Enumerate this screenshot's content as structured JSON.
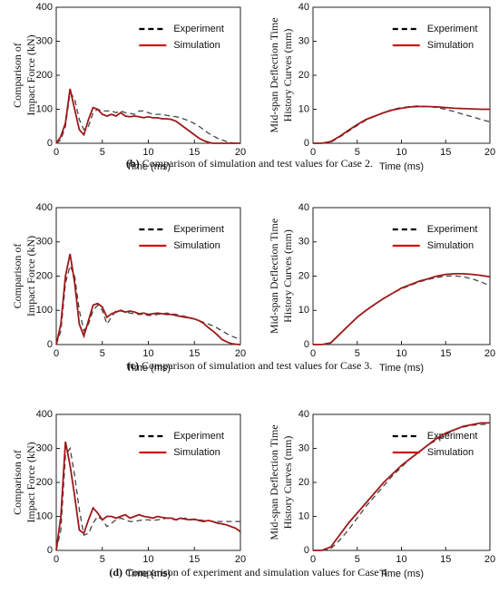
{
  "chart_data": [
    {
      "type": "line",
      "ylabel": [
        "Comparison of",
        "Impact Force (kN)"
      ],
      "xlabel": "Time (ms)",
      "xlim": [
        0,
        20
      ],
      "xticks": [
        0,
        5,
        10,
        15,
        20
      ],
      "ylim": [
        0,
        400
      ],
      "yticks": [
        0,
        100,
        200,
        300,
        400
      ],
      "x": [
        0,
        0.5,
        1,
        1.5,
        2,
        2.5,
        3,
        3.5,
        4,
        4.5,
        5,
        5.5,
        6,
        6.5,
        7,
        7.5,
        8,
        8.5,
        9,
        9.5,
        10,
        10.5,
        11,
        11.5,
        12,
        12.5,
        13,
        13.5,
        14,
        14.5,
        15,
        15.5,
        16,
        16.5,
        17,
        17.5,
        18,
        18.5,
        19,
        19.5,
        20
      ],
      "series": [
        {
          "name": "Experiment",
          "color": "#444444",
          "style": "dashed",
          "values": [
            0,
            10,
            50,
            150,
            130,
            70,
            40,
            50,
            90,
            100,
            95,
            95,
            95,
            90,
            95,
            90,
            88,
            85,
            95,
            95,
            90,
            85,
            85,
            85,
            82,
            80,
            78,
            75,
            70,
            65,
            58,
            50,
            40,
            30,
            22,
            15,
            10,
            5,
            2,
            0,
            0
          ]
        },
        {
          "name": "Simulation",
          "color": "#a01818",
          "style": "solid",
          "values": [
            0,
            20,
            60,
            160,
            100,
            40,
            25,
            70,
            105,
            100,
            85,
            80,
            85,
            80,
            90,
            80,
            78,
            80,
            78,
            75,
            78,
            75,
            75,
            72,
            72,
            70,
            65,
            55,
            45,
            35,
            25,
            15,
            8,
            3,
            0,
            0,
            0,
            0,
            0,
            0,
            0
          ]
        }
      ]
    },
    {
      "type": "line",
      "ylabel": [
        "Mid-span Deflection Time",
        "History Curves (mm)"
      ],
      "xlabel": "Time (ms)",
      "xlim": [
        0,
        20
      ],
      "xticks": [
        0,
        5,
        10,
        15,
        20
      ],
      "ylim": [
        0,
        40
      ],
      "yticks": [
        0,
        10,
        20,
        30,
        40
      ],
      "x": [
        0,
        1,
        2,
        3,
        4,
        5,
        6,
        7,
        8,
        9,
        10,
        11,
        12,
        13,
        14,
        15,
        16,
        17,
        18,
        19,
        20
      ],
      "series": [
        {
          "name": "Experiment",
          "color": "#444444",
          "style": "dashed",
          "values": [
            0,
            0,
            0.3,
            1.8,
            3.5,
            5.2,
            6.8,
            8,
            9,
            10,
            10.5,
            10.8,
            11,
            10.8,
            10.5,
            10,
            9.3,
            8.5,
            7.8,
            7,
            6.3
          ]
        },
        {
          "name": "Simulation",
          "color": "#a01818",
          "style": "solid",
          "values": [
            0,
            0,
            0.5,
            2,
            3.8,
            5.5,
            7,
            8,
            9,
            9.8,
            10.3,
            10.7,
            10.8,
            10.8,
            10.7,
            10.5,
            10.3,
            10.2,
            10.1,
            10,
            10
          ]
        }
      ]
    },
    {
      "type": "line",
      "ylabel": [
        "Comparison of",
        "Impact Force (kN)"
      ],
      "xlabel": "Time (ms)",
      "xlim": [
        0,
        20
      ],
      "xticks": [
        0,
        5,
        10,
        15,
        20
      ],
      "ylim": [
        0,
        400
      ],
      "yticks": [
        0,
        100,
        200,
        300,
        400
      ],
      "x": [
        0,
        0.5,
        1,
        1.5,
        2,
        2.5,
        3,
        3.5,
        4,
        4.5,
        5,
        5.5,
        6,
        6.5,
        7,
        7.5,
        8,
        8.5,
        9,
        9.5,
        10,
        10.5,
        11,
        11.5,
        12,
        12.5,
        13,
        13.5,
        14,
        14.5,
        15,
        15.5,
        16,
        16.5,
        17,
        17.5,
        18,
        18.5,
        19,
        19.5,
        20
      ],
      "series": [
        {
          "name": "Experiment",
          "color": "#444444",
          "style": "dashed",
          "values": [
            0,
            40,
            180,
            230,
            200,
            100,
            40,
            60,
            100,
            115,
            100,
            60,
            80,
            100,
            98,
            95,
            92,
            90,
            88,
            88,
            85,
            85,
            88,
            90,
            92,
            90,
            88,
            85,
            82,
            78,
            75,
            70,
            65,
            60,
            55,
            48,
            40,
            32,
            25,
            20,
            15
          ]
        },
        {
          "name": "Simulation",
          "color": "#a01818",
          "style": "solid",
          "values": [
            0,
            60,
            200,
            265,
            180,
            60,
            25,
            70,
            115,
            120,
            110,
            80,
            90,
            95,
            100,
            95,
            98,
            95,
            90,
            92,
            88,
            90,
            92,
            90,
            88,
            88,
            85,
            82,
            80,
            78,
            75,
            70,
            62,
            50,
            40,
            28,
            15,
            8,
            3,
            1,
            0
          ]
        }
      ]
    },
    {
      "type": "line",
      "ylabel": [
        "Mid-span Deflection Time",
        "History Curves (mm)"
      ],
      "xlabel": "Time (ms)",
      "xlim": [
        0,
        20
      ],
      "xticks": [
        0,
        5,
        10,
        15,
        20
      ],
      "ylim": [
        0,
        40
      ],
      "yticks": [
        0,
        10,
        20,
        30,
        40
      ],
      "x": [
        0,
        1,
        2,
        3,
        4,
        5,
        6,
        7,
        8,
        9,
        10,
        11,
        12,
        13,
        14,
        15,
        16,
        17,
        18,
        19,
        20
      ],
      "series": [
        {
          "name": "Experiment",
          "color": "#444444",
          "style": "dashed",
          "values": [
            0,
            0,
            0.5,
            3,
            5.5,
            8,
            10,
            11.8,
            13.5,
            15,
            16.3,
            17.3,
            18.3,
            19,
            19.6,
            20,
            20.1,
            19.8,
            19.2,
            18.3,
            17.2
          ]
        },
        {
          "name": "Simulation",
          "color": "#a01818",
          "style": "solid",
          "values": [
            0,
            0,
            0.5,
            3,
            5.5,
            8,
            10,
            11.8,
            13.5,
            15,
            16.5,
            17.5,
            18.5,
            19.2,
            20,
            20.5,
            20.7,
            20.7,
            20.5,
            20.2,
            19.8
          ]
        }
      ]
    },
    {
      "type": "line",
      "ylabel": [
        "Comparison of",
        "Impact Force (kN)"
      ],
      "xlabel": "Time (ms)",
      "xlim": [
        0,
        20
      ],
      "xticks": [
        0,
        5,
        10,
        15,
        20
      ],
      "ylim": [
        0,
        400
      ],
      "yticks": [
        0,
        100,
        200,
        300,
        400
      ],
      "x": [
        0,
        0.5,
        1,
        1.5,
        2,
        2.5,
        3,
        3.5,
        4,
        4.5,
        5,
        5.5,
        6,
        6.5,
        7,
        7.5,
        8,
        8.5,
        9,
        9.5,
        10,
        10.5,
        11,
        11.5,
        12,
        12.5,
        13,
        13.5,
        14,
        14.5,
        15,
        15.5,
        16,
        16.5,
        17,
        17.5,
        18,
        18.5,
        19,
        19.5,
        20
      ],
      "series": [
        {
          "name": "Experiment",
          "color": "#444444",
          "style": "dashed",
          "values": [
            0,
            60,
            280,
            300,
            220,
            120,
            45,
            50,
            80,
            100,
            90,
            70,
            80,
            90,
            95,
            90,
            85,
            85,
            88,
            90,
            90,
            88,
            90,
            92,
            95,
            92,
            90,
            92,
            95,
            92,
            90,
            90,
            88,
            88,
            85,
            85,
            85,
            85,
            85,
            85,
            85
          ]
        },
        {
          "name": "Simulation",
          "color": "#a01818",
          "style": "solid",
          "values": [
            0,
            100,
            320,
            250,
            160,
            60,
            50,
            90,
            125,
            110,
            90,
            100,
            100,
            95,
            100,
            105,
            95,
            100,
            105,
            100,
            98,
            95,
            100,
            97,
            95,
            95,
            90,
            95,
            92,
            90,
            92,
            88,
            85,
            88,
            85,
            80,
            78,
            75,
            70,
            65,
            55
          ]
        }
      ]
    },
    {
      "type": "line",
      "ylabel": [
        "Mid-span Deflection Time",
        "History Curves (mm)"
      ],
      "xlabel": "Time (ms)",
      "xlim": [
        0,
        20
      ],
      "xticks": [
        0,
        5,
        10,
        15,
        20
      ],
      "ylim": [
        0,
        40
      ],
      "yticks": [
        0,
        10,
        20,
        30,
        40
      ],
      "x": [
        0,
        1,
        2,
        3,
        4,
        5,
        6,
        7,
        8,
        9,
        10,
        11,
        12,
        13,
        14,
        15,
        16,
        17,
        18,
        19,
        20
      ],
      "series": [
        {
          "name": "Experiment",
          "color": "#444444",
          "style": "dashed",
          "values": [
            0,
            0,
            0.5,
            3,
            6,
            9.5,
            13,
            16,
            19,
            22,
            24.5,
            27,
            29,
            31,
            32.5,
            34,
            35.5,
            36.3,
            36.8,
            37,
            37.2
          ]
        },
        {
          "name": "Simulation",
          "color": "#a01818",
          "style": "solid",
          "values": [
            0,
            0,
            1,
            4.5,
            8,
            11,
            14,
            17,
            20,
            22.5,
            25,
            27,
            29,
            31,
            33,
            34.5,
            35.5,
            36.5,
            37,
            37.5,
            37.5
          ]
        }
      ]
    }
  ],
  "captions": [
    {
      "label": "(b)",
      "text": "Comparison of simulation and test values for Case 2."
    },
    {
      "label": "(c)",
      "text": "Comparison of simulation and test values for Case 3."
    },
    {
      "label": "(d)",
      "text": "Comparison of experiment and simulation values for Case 4."
    }
  ]
}
